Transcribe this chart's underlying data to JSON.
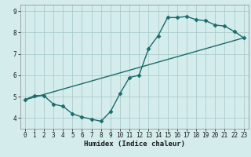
{
  "line1_x": [
    0,
    1,
    2,
    3,
    4,
    5,
    6,
    7,
    8,
    9,
    10,
    11,
    12,
    13,
    14,
    15,
    16,
    17,
    18,
    19,
    20,
    21,
    22,
    23
  ],
  "line1_y": [
    4.85,
    5.05,
    5.05,
    4.65,
    4.55,
    4.2,
    4.05,
    3.95,
    3.85,
    4.3,
    5.15,
    5.9,
    6.0,
    7.25,
    7.85,
    8.7,
    8.7,
    8.75,
    8.6,
    8.55,
    8.35,
    8.3,
    8.05,
    7.75
  ],
  "line2_x": [
    0,
    23
  ],
  "line2_y": [
    4.85,
    7.75
  ],
  "color": "#1a6b6b",
  "bg_color": "#d5ecec",
  "grid_color": "#aacccc",
  "xlabel": "Humidex (Indice chaleur)",
  "xlim": [
    -0.5,
    23.5
  ],
  "ylim": [
    3.5,
    9.3
  ],
  "yticks": [
    4,
    5,
    6,
    7,
    8,
    9
  ],
  "xticks": [
    0,
    1,
    2,
    3,
    4,
    5,
    6,
    7,
    8,
    9,
    10,
    11,
    12,
    13,
    14,
    15,
    16,
    17,
    18,
    19,
    20,
    21,
    22,
    23
  ],
  "marker": "D",
  "markersize": 2.5,
  "linewidth": 1.0
}
